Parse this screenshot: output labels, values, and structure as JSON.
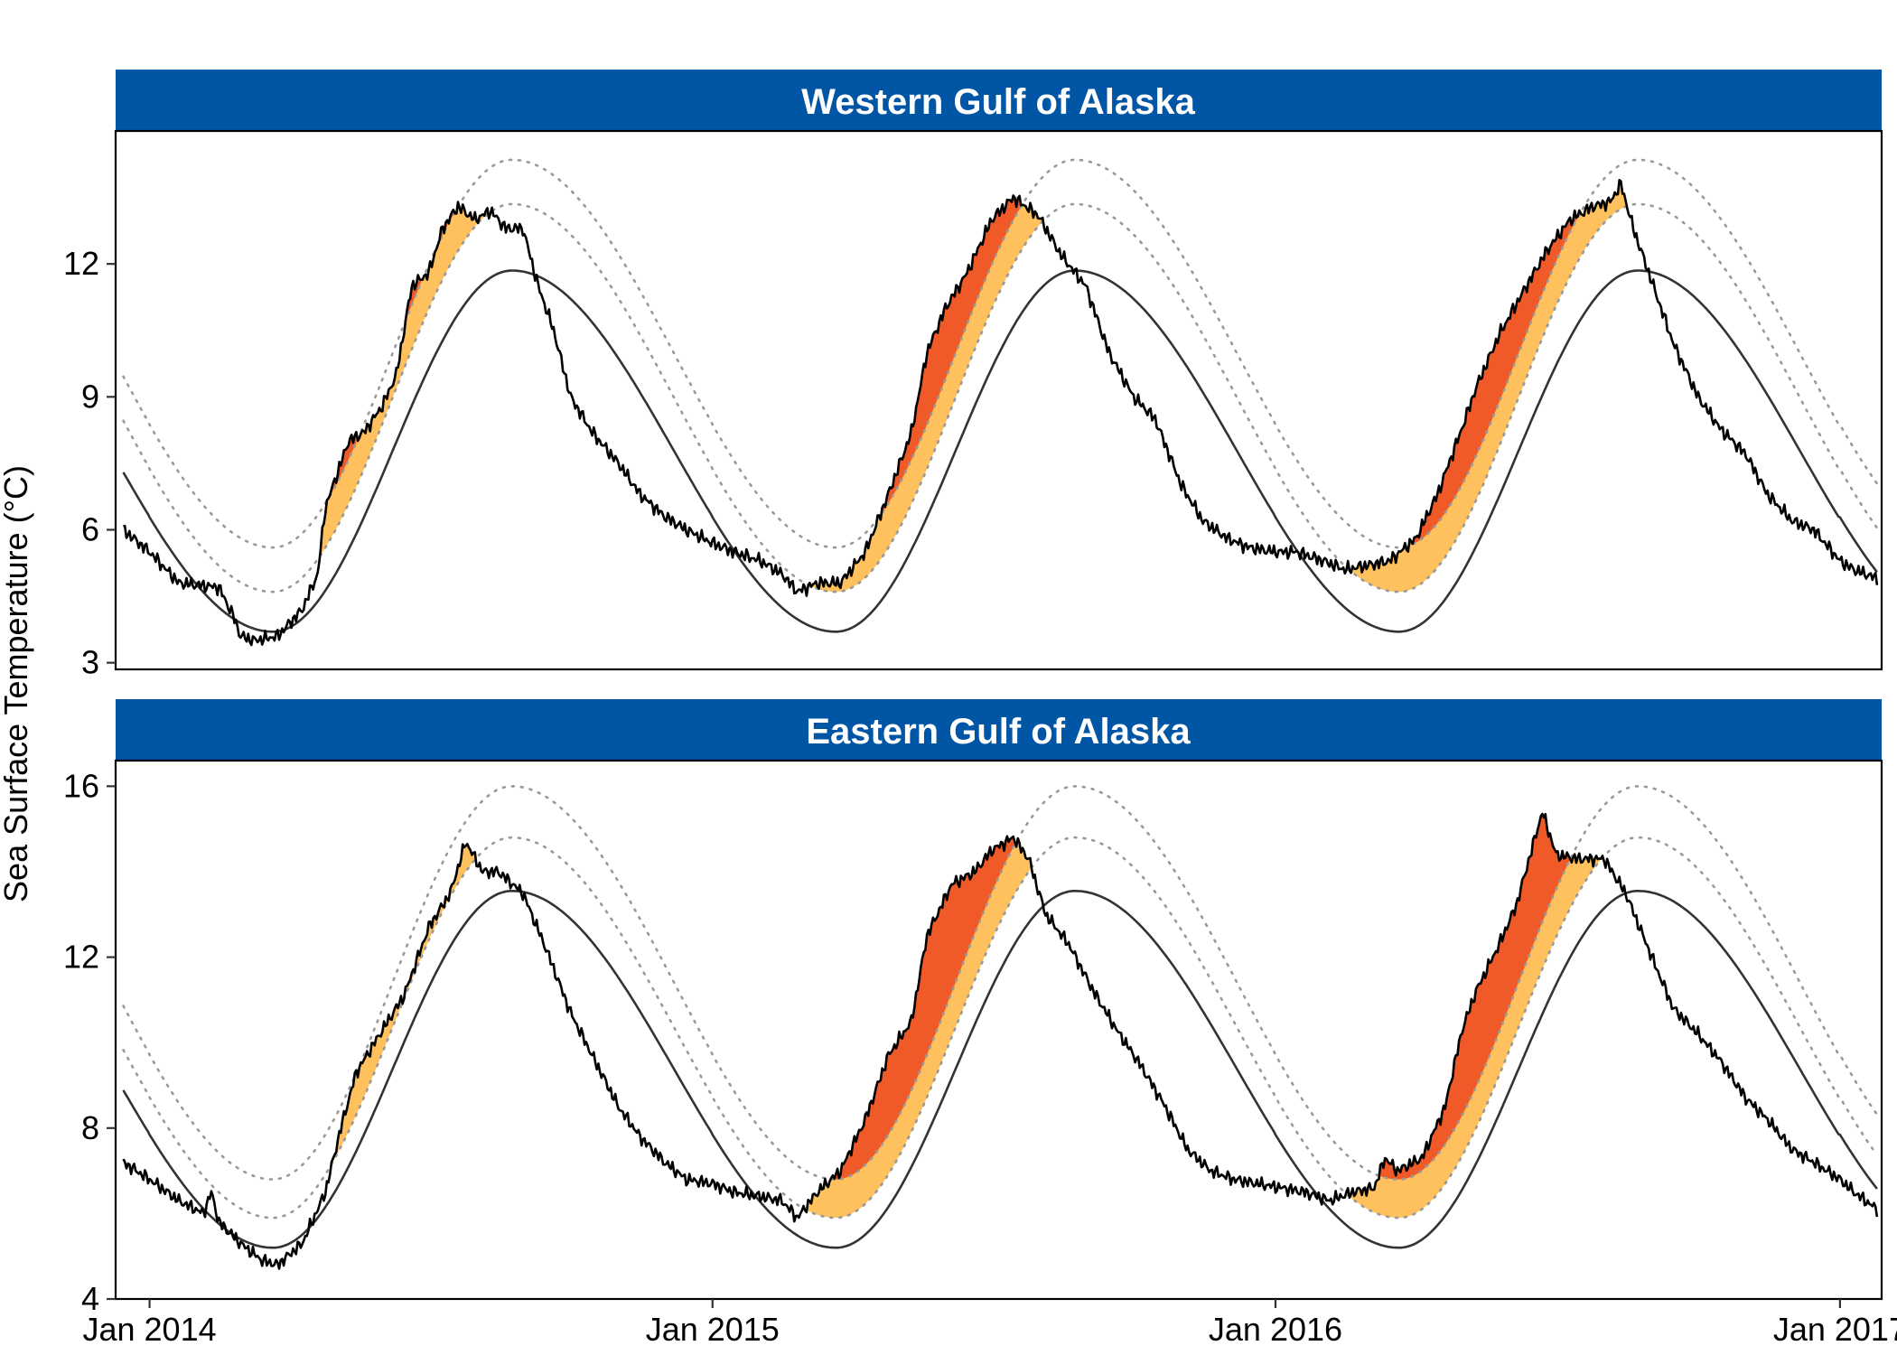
{
  "chart_data": {
    "type": "line",
    "ylabel": "Sea Surface Temperature (°C)",
    "x_ticks": [
      "Jan 2014",
      "Jan 2015",
      "Jan 2016",
      "Jan 2017"
    ],
    "xlim": [
      "2013-12-10",
      "2017-01-28"
    ],
    "colors": {
      "strip": "#0055a5",
      "observed": "#000000",
      "climatology": "#333333",
      "threshold": "#999999",
      "heatwave_moderate": "#ffc15e",
      "heatwave_strong": "#f05a28"
    },
    "panels": [
      {
        "title": "Western Gulf of Alaska",
        "ylim": [
          2.85,
          15.0
        ],
        "y_ticks": [
          3,
          6,
          9,
          12
        ],
        "climatology": {
          "min": 3.7,
          "max": 11.85,
          "min_day": 80,
          "max_day": 235
        },
        "threshold": {
          "min": 4.6,
          "max": 13.35,
          "offset_winter": 0.9,
          "offset_summer": 1.5
        },
        "threshold2": {
          "min": 5.6,
          "max": 14.4,
          "offset_winter": 1.9,
          "offset_summer": 2.5
        },
        "observed": [
          [
            "2013-12-15",
            6.0
          ],
          [
            "2014-01-01",
            5.5
          ],
          [
            "2014-01-20",
            4.8
          ],
          [
            "2014-02-15",
            4.7
          ],
          [
            "2014-02-25",
            4.0
          ],
          [
            "2014-03-01",
            3.6
          ],
          [
            "2014-03-10",
            3.5
          ],
          [
            "2014-03-25",
            3.6
          ],
          [
            "2014-04-10",
            4.2
          ],
          [
            "2014-04-20",
            5.0
          ],
          [
            "2014-04-25",
            6.5
          ],
          [
            "2014-05-05",
            7.5
          ],
          [
            "2014-05-10",
            8.0
          ],
          [
            "2014-05-20",
            8.2
          ],
          [
            "2014-06-01",
            8.8
          ],
          [
            "2014-06-10",
            9.5
          ],
          [
            "2014-06-20",
            11.5
          ],
          [
            "2014-07-01",
            11.8
          ],
          [
            "2014-07-10",
            12.8
          ],
          [
            "2014-07-20",
            13.3
          ],
          [
            "2014-07-31",
            13.0
          ],
          [
            "2014-08-10",
            13.2
          ],
          [
            "2014-08-20",
            12.8
          ],
          [
            "2014-08-31",
            12.8
          ],
          [
            "2014-09-10",
            11.5
          ],
          [
            "2014-09-20",
            10.5
          ],
          [
            "2014-10-01",
            9.0
          ],
          [
            "2014-10-15",
            8.2
          ],
          [
            "2014-11-01",
            7.5
          ],
          [
            "2014-11-15",
            6.8
          ],
          [
            "2014-12-01",
            6.3
          ],
          [
            "2014-12-15",
            6.0
          ],
          [
            "2015-01-01",
            5.7
          ],
          [
            "2015-01-15",
            5.5
          ],
          [
            "2015-02-01",
            5.3
          ],
          [
            "2015-02-15",
            5.0
          ],
          [
            "2015-02-25",
            4.6
          ],
          [
            "2015-03-10",
            4.8
          ],
          [
            "2015-03-25",
            4.8
          ],
          [
            "2015-04-10",
            5.5
          ],
          [
            "2015-04-25",
            6.8
          ],
          [
            "2015-05-10",
            8.2
          ],
          [
            "2015-05-20",
            10.0
          ],
          [
            "2015-06-01",
            11.0
          ],
          [
            "2015-06-15",
            11.8
          ],
          [
            "2015-07-01",
            13.0
          ],
          [
            "2015-07-15",
            13.5
          ],
          [
            "2015-07-31",
            13.1
          ],
          [
            "2015-08-15",
            12.2
          ],
          [
            "2015-08-31",
            11.5
          ],
          [
            "2015-09-15",
            10.0
          ],
          [
            "2015-10-01",
            9.0
          ],
          [
            "2015-10-15",
            8.5
          ],
          [
            "2015-11-01",
            7.0
          ],
          [
            "2015-11-15",
            6.2
          ],
          [
            "2015-12-01",
            5.8
          ],
          [
            "2015-12-15",
            5.6
          ],
          [
            "2016-01-01",
            5.5
          ],
          [
            "2016-01-15",
            5.5
          ],
          [
            "2016-02-01",
            5.3
          ],
          [
            "2016-02-15",
            5.1
          ],
          [
            "2016-03-01",
            5.2
          ],
          [
            "2016-03-15",
            5.3
          ],
          [
            "2016-04-01",
            5.8
          ],
          [
            "2016-04-15",
            6.8
          ],
          [
            "2016-05-01",
            8.3
          ],
          [
            "2016-05-10",
            9.2
          ],
          [
            "2016-05-25",
            10.4
          ],
          [
            "2016-06-10",
            11.4
          ],
          [
            "2016-06-25",
            12.3
          ],
          [
            "2016-07-10",
            13.0
          ],
          [
            "2016-07-25",
            13.3
          ],
          [
            "2016-08-05",
            13.4
          ],
          [
            "2016-08-12",
            13.8
          ],
          [
            "2016-08-20",
            12.8
          ],
          [
            "2016-09-01",
            11.6
          ],
          [
            "2016-09-15",
            10.2
          ],
          [
            "2016-10-01",
            9.0
          ],
          [
            "2016-10-15",
            8.3
          ],
          [
            "2016-11-01",
            7.7
          ],
          [
            "2016-11-15",
            6.8
          ],
          [
            "2016-12-01",
            6.2
          ],
          [
            "2016-12-15",
            6.0
          ],
          [
            "2017-01-01",
            5.3
          ],
          [
            "2017-01-10",
            5.1
          ],
          [
            "2017-01-25",
            4.9
          ]
        ]
      },
      {
        "title": "Eastern Gulf of Alaska",
        "ylim": [
          4.0,
          16.6
        ],
        "y_ticks": [
          4,
          8,
          12,
          16
        ],
        "climatology": {
          "min": 5.2,
          "max": 13.55,
          "min_day": 80,
          "max_day": 235
        },
        "threshold": {
          "min": 5.9,
          "max": 14.8,
          "offset_winter": 0.7,
          "offset_summer": 1.25
        },
        "threshold2": {
          "min": 6.6,
          "max": 16.0,
          "offset_winter": 1.6,
          "offset_summer": 2.45
        },
        "observed": [
          [
            "2013-12-15",
            7.2
          ],
          [
            "2014-01-01",
            6.8
          ],
          [
            "2014-01-20",
            6.3
          ],
          [
            "2014-02-05",
            6.0
          ],
          [
            "2014-02-10",
            6.5
          ],
          [
            "2014-02-15",
            5.8
          ],
          [
            "2014-03-01",
            5.3
          ],
          [
            "2014-03-15",
            4.9
          ],
          [
            "2014-03-25",
            4.8
          ],
          [
            "2014-04-10",
            5.3
          ],
          [
            "2014-04-25",
            6.5
          ],
          [
            "2014-05-05",
            8.0
          ],
          [
            "2014-05-15",
            9.3
          ],
          [
            "2014-06-01",
            10.3
          ],
          [
            "2014-06-15",
            11.1
          ],
          [
            "2014-07-01",
            12.7
          ],
          [
            "2014-07-15",
            13.5
          ],
          [
            "2014-07-25",
            14.7
          ],
          [
            "2014-08-05",
            14.0
          ],
          [
            "2014-08-15",
            14.0
          ],
          [
            "2014-08-31",
            13.5
          ],
          [
            "2014-09-15",
            12.2
          ],
          [
            "2014-10-01",
            10.7
          ],
          [
            "2014-10-15",
            9.7
          ],
          [
            "2014-11-01",
            8.5
          ],
          [
            "2014-11-15",
            7.8
          ],
          [
            "2014-12-01",
            7.2
          ],
          [
            "2014-12-15",
            6.8
          ],
          [
            "2015-01-01",
            6.7
          ],
          [
            "2015-01-15",
            6.5
          ],
          [
            "2015-02-01",
            6.4
          ],
          [
            "2015-02-15",
            6.3
          ],
          [
            "2015-02-25",
            5.9
          ],
          [
            "2015-03-10",
            6.5
          ],
          [
            "2015-03-25",
            7.0
          ],
          [
            "2015-04-10",
            8.2
          ],
          [
            "2015-04-25",
            9.7
          ],
          [
            "2015-05-10",
            10.5
          ],
          [
            "2015-05-20",
            12.5
          ],
          [
            "2015-06-05",
            13.7
          ],
          [
            "2015-06-20",
            14.0
          ],
          [
            "2015-07-01",
            14.5
          ],
          [
            "2015-07-15",
            14.8
          ],
          [
            "2015-07-25",
            14.3
          ],
          [
            "2015-08-05",
            13.0
          ],
          [
            "2015-08-20",
            12.3
          ],
          [
            "2015-09-05",
            11.2
          ],
          [
            "2015-09-20",
            10.3
          ],
          [
            "2015-10-05",
            9.5
          ],
          [
            "2015-10-20",
            8.6
          ],
          [
            "2015-11-05",
            7.5
          ],
          [
            "2015-11-20",
            7.0
          ],
          [
            "2015-12-05",
            6.8
          ],
          [
            "2015-12-20",
            6.7
          ],
          [
            "2016-01-05",
            6.6
          ],
          [
            "2016-01-20",
            6.5
          ],
          [
            "2016-02-05",
            6.3
          ],
          [
            "2016-02-20",
            6.5
          ],
          [
            "2016-03-05",
            6.6
          ],
          [
            "2016-03-12",
            7.3
          ],
          [
            "2016-03-20",
            7.0
          ],
          [
            "2016-04-05",
            7.3
          ],
          [
            "2016-04-20",
            8.5
          ],
          [
            "2016-05-01",
            10.3
          ],
          [
            "2016-05-10",
            11.2
          ],
          [
            "2016-05-25",
            12.3
          ],
          [
            "2016-06-05",
            13.2
          ],
          [
            "2016-06-15",
            14.5
          ],
          [
            "2016-06-22",
            15.4
          ],
          [
            "2016-07-01",
            14.4
          ],
          [
            "2016-07-15",
            14.3
          ],
          [
            "2016-08-01",
            14.3
          ],
          [
            "2016-08-15",
            13.5
          ],
          [
            "2016-09-01",
            12.0
          ],
          [
            "2016-09-15",
            10.8
          ],
          [
            "2016-10-01",
            10.2
          ],
          [
            "2016-10-15",
            9.6
          ],
          [
            "2016-11-01",
            8.7
          ],
          [
            "2016-11-15",
            8.2
          ],
          [
            "2016-12-01",
            7.5
          ],
          [
            "2016-12-15",
            7.2
          ],
          [
            "2017-01-01",
            6.8
          ],
          [
            "2017-01-10",
            6.5
          ],
          [
            "2017-01-25",
            6.1
          ]
        ]
      }
    ]
  }
}
